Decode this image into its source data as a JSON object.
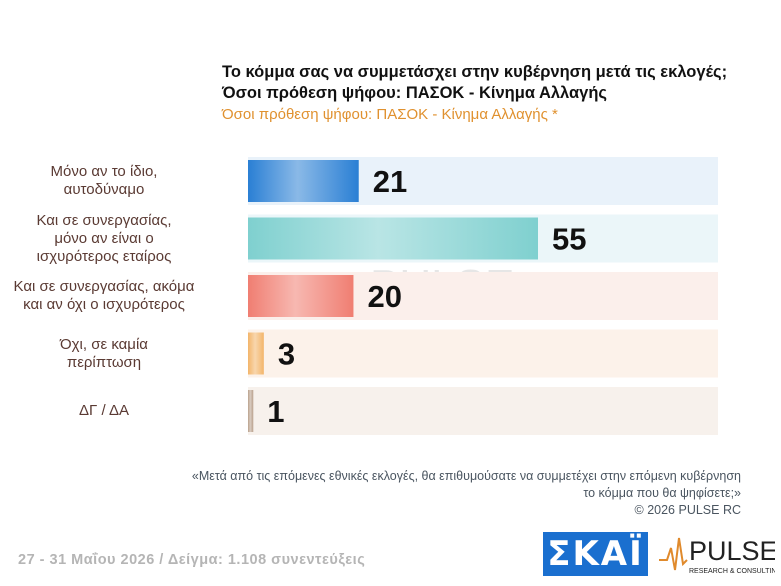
{
  "title_line1": "Το κόμμα σας να συμμετάσχει στην κυβέρνηση μετά τις εκλογές;",
  "title_line2": "Όσοι πρόθεση ψήφου: ΠΑΣΟΚ - Κίνημα Αλλαγής",
  "subtitle": "Όσοι πρόθεση ψήφου: ΠΑΣΟΚ - Κίνημα Αλλαγής *",
  "question_line1": "«Μετά από τις επόμενες εθνικές εκλογές, θα επιθυμούσατε να συμμετέχει στην επόμενη κυβέρνηση",
  "question_line2": "το κόμμα που θα ψηφίσετε;»",
  "copyright": "©  2026  PULSE RC",
  "footer_date": "27 - 31  Μαΐου 2026  /  Δείγμα:  1.108 συνεντεύξεις",
  "logos": {
    "skai": "ΣΚΑΪ",
    "pulse": "PULSE",
    "pulse_tagline": "RESEARCH & CONSULTING"
  },
  "chart_data": {
    "type": "bar",
    "orientation": "horizontal",
    "categories": [
      [
        "Μόνο αν το ίδιο,",
        "αυτοδύναμο"
      ],
      [
        "Και σε συνεργασίας,",
        "μόνο αν είναι ο",
        "ισχυρότερος εταίρος"
      ],
      [
        "Και σε συνεργασίας, ακόμα",
        "και αν όχι ο ισχυρότερος"
      ],
      [
        "Όχι, σε καμία",
        "περίπτωση"
      ],
      [
        "ΔΓ / ΔΑ"
      ]
    ],
    "values": [
      21,
      55,
      20,
      3,
      1
    ],
    "colors": [
      "#2a7fd4",
      "#7fd0cf",
      "#f07e72",
      "#f3b56a",
      "#b9a18c"
    ],
    "track_colors": [
      "#e9f2fa",
      "#ebf6f9",
      "#fbefeb",
      "#fcf2ea",
      "#f7f1ec"
    ],
    "xlim": [
      0,
      100
    ]
  }
}
